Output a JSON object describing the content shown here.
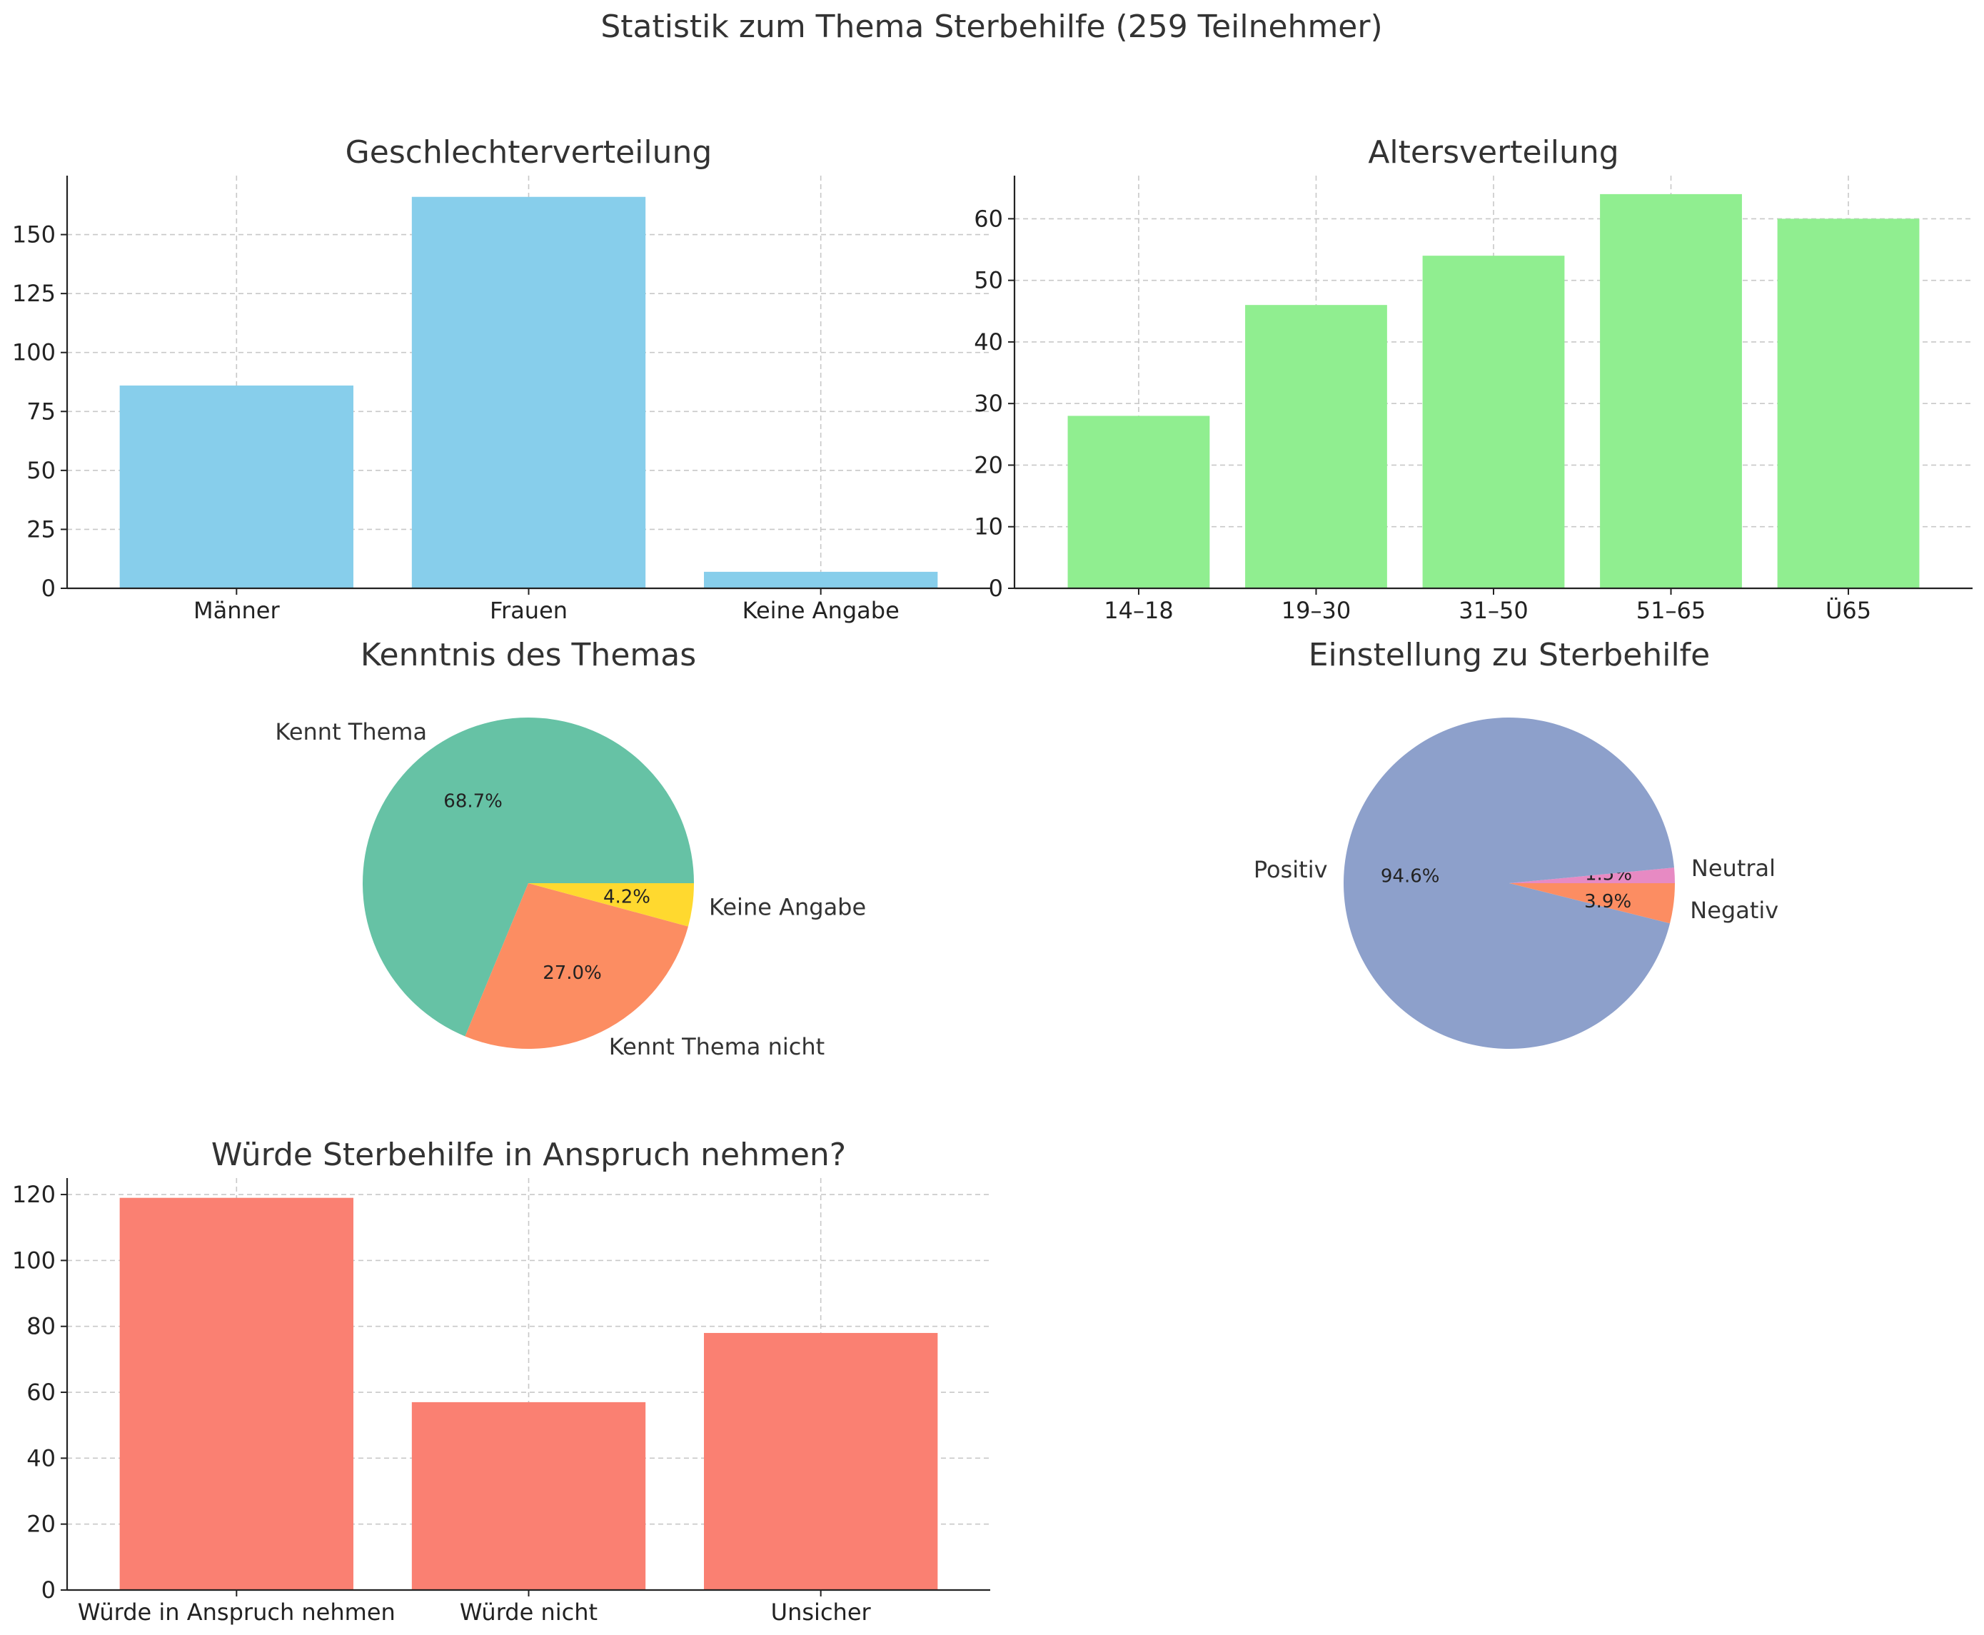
{
  "suptitle": "Statistik zum Thema Sterbehilfe (259 Teilnehmer)",
  "chart_data": [
    {
      "id": "gender",
      "type": "bar",
      "title": "Geschlechterverteilung",
      "categories": [
        "Männer",
        "Frauen",
        "Keine Angabe"
      ],
      "values": [
        86,
        166,
        7
      ],
      "ylim": [
        0,
        175
      ],
      "yticks": [
        0,
        25,
        50,
        75,
        100,
        125,
        150
      ],
      "color": "#87ceeb",
      "grid": true,
      "xlabel": "",
      "ylabel": ""
    },
    {
      "id": "age",
      "type": "bar",
      "title": "Altersverteilung",
      "categories": [
        "14–18",
        "19–30",
        "31–50",
        "51–65",
        "Ü65"
      ],
      "values": [
        28,
        46,
        54,
        64,
        60
      ],
      "ylim": [
        0,
        67
      ],
      "yticks": [
        0,
        10,
        20,
        30,
        40,
        50,
        60
      ],
      "color": "#90ee90",
      "grid": true,
      "xlabel": "",
      "ylabel": ""
    },
    {
      "id": "knowledge",
      "type": "pie",
      "title": "Kenntnis des Themas",
      "labels": [
        "Kennt Thema",
        "Kennt Thema nicht",
        "Keine Angabe"
      ],
      "values": [
        68.7,
        27.0,
        4.2
      ],
      "pct_labels": [
        "68.7%",
        "27.0%",
        "4.2%"
      ],
      "colors": [
        "#66c2a5",
        "#fc8d62",
        "#ffd92f"
      ],
      "startangle": 0
    },
    {
      "id": "attitude",
      "type": "pie",
      "title": "Einstellung zu Sterbehilfe",
      "labels": [
        "Neutral",
        "Positiv",
        "Negativ"
      ],
      "values": [
        1.5,
        94.6,
        3.9
      ],
      "pct_labels": [
        "1.5%",
        "94.6%",
        "3.9%"
      ],
      "colors": [
        "#e78ac3",
        "#8da0cb",
        "#fc8d62"
      ],
      "startangle": 0
    },
    {
      "id": "usage",
      "type": "bar",
      "title": "Würde Sterbehilfe in Anspruch nehmen?",
      "categories": [
        "Würde in Anspruch nehmen",
        "Würde nicht",
        "Unsicher"
      ],
      "values": [
        119,
        57,
        78
      ],
      "ylim": [
        0,
        125
      ],
      "yticks": [
        0,
        20,
        40,
        60,
        80,
        100,
        120
      ],
      "color": "#fa8072",
      "grid": true,
      "xlabel": "",
      "ylabel": ""
    }
  ]
}
